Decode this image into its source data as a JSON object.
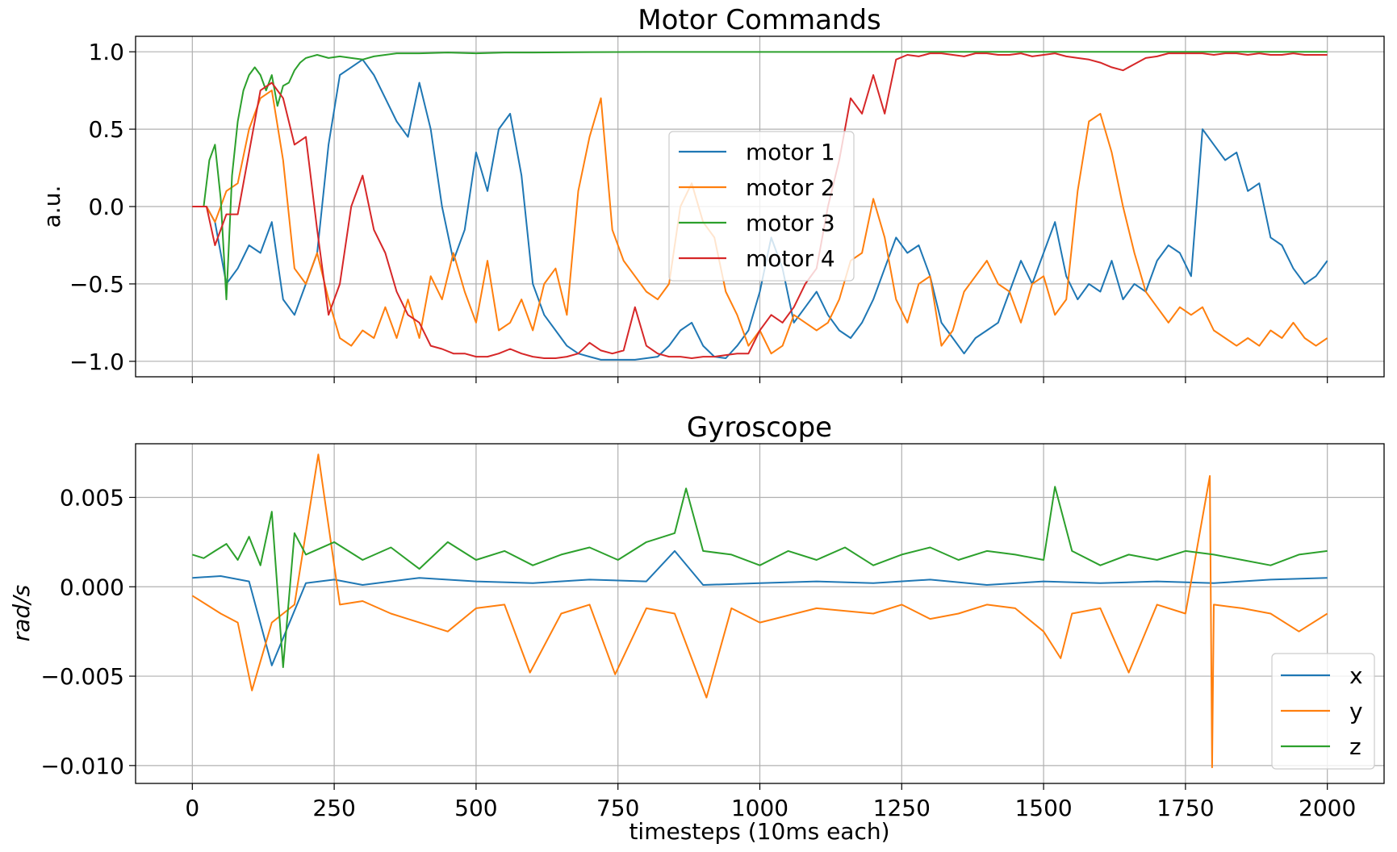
{
  "chart_data": [
    {
      "type": "line",
      "title": "Motor Commands",
      "ylabel": "a.u.",
      "xlabel": "",
      "xlim": [
        -100,
        2100
      ],
      "ylim": [
        -1.1,
        1.1
      ],
      "xticks": [
        0,
        250,
        500,
        750,
        1000,
        1250,
        1500,
        1750,
        2000
      ],
      "xtick_labels_visible": false,
      "yticks": [
        1.0,
        0.5,
        0.0,
        -0.5,
        -1.0
      ],
      "ytick_labels": [
        "1.0",
        "0.5",
        "0.0",
        "−0.5",
        "−1.0"
      ],
      "grid": true,
      "legend_position": "center",
      "series": [
        {
          "name": "motor 1",
          "color": "#1f77b4",
          "x": [
            0,
            25,
            40,
            60,
            80,
            100,
            120,
            140,
            160,
            180,
            200,
            220,
            240,
            260,
            280,
            300,
            320,
            340,
            360,
            380,
            400,
            420,
            440,
            460,
            480,
            500,
            520,
            540,
            560,
            580,
            600,
            620,
            640,
            660,
            680,
            700,
            720,
            740,
            760,
            780,
            800,
            820,
            840,
            860,
            880,
            900,
            920,
            940,
            960,
            980,
            1000,
            1020,
            1040,
            1060,
            1080,
            1100,
            1120,
            1140,
            1160,
            1180,
            1200,
            1220,
            1240,
            1260,
            1280,
            1300,
            1320,
            1340,
            1360,
            1380,
            1400,
            1420,
            1440,
            1460,
            1480,
            1500,
            1520,
            1540,
            1560,
            1580,
            1600,
            1620,
            1640,
            1660,
            1680,
            1700,
            1720,
            1740,
            1760,
            1780,
            1800,
            1820,
            1840,
            1860,
            1880,
            1900,
            1920,
            1940,
            1960,
            1980,
            2000
          ],
          "y": [
            0.0,
            0.0,
            -0.1,
            -0.5,
            -0.4,
            -0.25,
            -0.3,
            -0.1,
            -0.6,
            -0.7,
            -0.5,
            -0.3,
            0.4,
            0.85,
            0.9,
            0.95,
            0.85,
            0.7,
            0.55,
            0.45,
            0.8,
            0.5,
            0.0,
            -0.35,
            -0.15,
            0.35,
            0.1,
            0.5,
            0.6,
            0.2,
            -0.5,
            -0.7,
            -0.8,
            -0.9,
            -0.95,
            -0.97,
            -0.99,
            -0.99,
            -0.99,
            -0.99,
            -0.98,
            -0.97,
            -0.9,
            -0.8,
            -0.75,
            -0.9,
            -0.97,
            -0.98,
            -0.9,
            -0.8,
            -0.55,
            -0.2,
            -0.4,
            -0.75,
            -0.65,
            -0.55,
            -0.7,
            -0.8,
            -0.85,
            -0.75,
            -0.6,
            -0.4,
            -0.2,
            -0.3,
            -0.25,
            -0.45,
            -0.75,
            -0.85,
            -0.95,
            -0.85,
            -0.8,
            -0.75,
            -0.55,
            -0.35,
            -0.5,
            -0.3,
            -0.1,
            -0.45,
            -0.6,
            -0.5,
            -0.55,
            -0.35,
            -0.6,
            -0.5,
            -0.55,
            -0.35,
            -0.25,
            -0.3,
            -0.45,
            0.5,
            0.4,
            0.3,
            0.35,
            0.1,
            0.15,
            -0.2,
            -0.25,
            -0.4,
            -0.5,
            -0.45,
            -0.35
          ]
        },
        {
          "name": "motor 2",
          "color": "#ff7f0e",
          "x": [
            0,
            25,
            40,
            60,
            80,
            100,
            120,
            140,
            160,
            180,
            200,
            220,
            240,
            260,
            280,
            300,
            320,
            340,
            360,
            380,
            400,
            420,
            440,
            460,
            480,
            500,
            520,
            540,
            560,
            580,
            600,
            620,
            640,
            660,
            680,
            700,
            720,
            740,
            760,
            780,
            800,
            820,
            840,
            860,
            880,
            900,
            920,
            940,
            960,
            980,
            1000,
            1020,
            1040,
            1060,
            1080,
            1100,
            1120,
            1140,
            1160,
            1180,
            1200,
            1220,
            1240,
            1260,
            1280,
            1300,
            1320,
            1340,
            1360,
            1380,
            1400,
            1420,
            1440,
            1460,
            1480,
            1500,
            1520,
            1540,
            1560,
            1580,
            1600,
            1620,
            1640,
            1660,
            1680,
            1700,
            1720,
            1740,
            1760,
            1780,
            1800,
            1820,
            1840,
            1860,
            1880,
            1900,
            1920,
            1940,
            1960,
            1980,
            2000
          ],
          "y": [
            0.0,
            0.0,
            -0.1,
            0.1,
            0.15,
            0.5,
            0.7,
            0.75,
            0.3,
            -0.4,
            -0.5,
            -0.3,
            -0.6,
            -0.85,
            -0.9,
            -0.8,
            -0.85,
            -0.65,
            -0.85,
            -0.6,
            -0.85,
            -0.45,
            -0.6,
            -0.3,
            -0.55,
            -0.75,
            -0.35,
            -0.8,
            -0.75,
            -0.6,
            -0.8,
            -0.5,
            -0.4,
            -0.7,
            0.1,
            0.45,
            0.7,
            -0.15,
            -0.35,
            -0.45,
            -0.55,
            -0.6,
            -0.5,
            0.0,
            0.15,
            -0.1,
            -0.2,
            -0.55,
            -0.7,
            -0.9,
            -0.8,
            -0.95,
            -0.9,
            -0.7,
            -0.75,
            -0.8,
            -0.75,
            -0.6,
            -0.35,
            -0.3,
            0.05,
            -0.2,
            -0.6,
            -0.75,
            -0.5,
            -0.45,
            -0.9,
            -0.8,
            -0.55,
            -0.45,
            -0.35,
            -0.5,
            -0.55,
            -0.75,
            -0.5,
            -0.45,
            -0.7,
            -0.6,
            0.1,
            0.55,
            0.6,
            0.35,
            0.0,
            -0.3,
            -0.55,
            -0.65,
            -0.75,
            -0.65,
            -0.7,
            -0.65,
            -0.8,
            -0.85,
            -0.9,
            -0.85,
            -0.9,
            -0.8,
            -0.85,
            -0.75,
            -0.85,
            -0.9,
            -0.85
          ]
        },
        {
          "name": "motor 3",
          "color": "#2ca02c",
          "x": [
            0,
            20,
            30,
            40,
            50,
            60,
            70,
            80,
            90,
            100,
            110,
            120,
            130,
            140,
            150,
            160,
            170,
            180,
            190,
            200,
            210,
            220,
            240,
            260,
            280,
            300,
            320,
            340,
            360,
            400,
            450,
            500,
            550,
            600,
            700,
            800,
            1000,
            1250,
            1500,
            1750,
            2000
          ],
          "y": [
            0.0,
            0.0,
            0.3,
            0.4,
            0.05,
            -0.6,
            0.2,
            0.55,
            0.75,
            0.85,
            0.9,
            0.85,
            0.75,
            0.85,
            0.65,
            0.78,
            0.8,
            0.88,
            0.93,
            0.96,
            0.97,
            0.98,
            0.96,
            0.97,
            0.96,
            0.95,
            0.97,
            0.98,
            0.99,
            0.99,
            0.995,
            0.99,
            0.995,
            0.995,
            0.998,
            0.999,
            0.999,
            1.0,
            1.0,
            1.0,
            1.0
          ]
        },
        {
          "name": "motor 4",
          "color": "#d62728",
          "x": [
            0,
            25,
            40,
            60,
            80,
            100,
            120,
            140,
            160,
            180,
            200,
            220,
            240,
            260,
            280,
            300,
            320,
            340,
            360,
            380,
            400,
            420,
            440,
            460,
            480,
            500,
            520,
            540,
            560,
            580,
            600,
            620,
            640,
            660,
            680,
            700,
            720,
            740,
            760,
            780,
            800,
            820,
            840,
            860,
            880,
            900,
            920,
            940,
            960,
            980,
            1000,
            1020,
            1040,
            1060,
            1080,
            1100,
            1120,
            1140,
            1160,
            1180,
            1200,
            1220,
            1240,
            1260,
            1280,
            1300,
            1320,
            1340,
            1360,
            1380,
            1400,
            1420,
            1440,
            1460,
            1480,
            1500,
            1520,
            1540,
            1560,
            1580,
            1600,
            1620,
            1640,
            1660,
            1680,
            1700,
            1720,
            1740,
            1760,
            1780,
            1800,
            1820,
            1840,
            1860,
            1880,
            1900,
            1920,
            1940,
            1960,
            1980,
            2000
          ],
          "y": [
            0.0,
            0.0,
            -0.25,
            -0.05,
            -0.05,
            0.35,
            0.75,
            0.8,
            0.7,
            0.4,
            0.45,
            -0.15,
            -0.7,
            -0.5,
            0.0,
            0.2,
            -0.15,
            -0.3,
            -0.55,
            -0.7,
            -0.75,
            -0.9,
            -0.92,
            -0.95,
            -0.95,
            -0.97,
            -0.97,
            -0.95,
            -0.92,
            -0.95,
            -0.97,
            -0.98,
            -0.98,
            -0.97,
            -0.95,
            -0.88,
            -0.93,
            -0.95,
            -0.93,
            -0.65,
            -0.9,
            -0.95,
            -0.97,
            -0.97,
            -0.98,
            -0.97,
            -0.97,
            -0.96,
            -0.95,
            -0.95,
            -0.8,
            -0.7,
            -0.75,
            -0.65,
            -0.5,
            -0.4,
            0.0,
            0.3,
            0.7,
            0.6,
            0.85,
            0.6,
            0.95,
            0.98,
            0.97,
            0.99,
            0.99,
            0.98,
            0.97,
            0.99,
            0.99,
            0.98,
            0.98,
            0.99,
            0.97,
            0.98,
            0.99,
            0.97,
            0.96,
            0.95,
            0.93,
            0.9,
            0.88,
            0.92,
            0.96,
            0.97,
            0.99,
            0.99,
            0.99,
            0.99,
            0.98,
            0.99,
            0.99,
            0.98,
            0.99,
            0.98,
            0.98,
            0.99,
            0.98,
            0.98,
            0.98
          ]
        }
      ]
    },
    {
      "type": "line",
      "title": "Gyroscope",
      "ylabel": "rad/s",
      "xlabel": "timesteps (10ms each)",
      "xlim": [
        -100,
        2100
      ],
      "ylim": [
        -0.011,
        0.008
      ],
      "xticks": [
        0,
        250,
        500,
        750,
        1000,
        1250,
        1500,
        1750,
        2000
      ],
      "xtick_labels": [
        "0",
        "250",
        "500",
        "750",
        "1000",
        "1250",
        "1500",
        "1750",
        "2000"
      ],
      "yticks": [
        0.005,
        0.0,
        -0.005,
        -0.01
      ],
      "ytick_labels": [
        "0.005",
        "0.000",
        "−0.005",
        "−0.010"
      ],
      "grid": true,
      "legend_position": "lower right",
      "series": [
        {
          "name": "x",
          "color": "#1f77b4",
          "x": [
            0,
            50,
            100,
            140,
            200,
            250,
            300,
            400,
            500,
            600,
            700,
            800,
            850,
            900,
            1000,
            1100,
            1200,
            1300,
            1400,
            1500,
            1600,
            1700,
            1800,
            1900,
            2000
          ],
          "y": [
            0.0005,
            0.0006,
            0.0003,
            -0.0044,
            0.0002,
            0.0004,
            0.0001,
            0.0005,
            0.0003,
            0.0002,
            0.0004,
            0.0003,
            0.002,
            0.0001,
            0.0002,
            0.0003,
            0.0002,
            0.0004,
            0.0001,
            0.0003,
            0.0002,
            0.0003,
            0.0002,
            0.0004,
            0.0005
          ]
        },
        {
          "name": "y",
          "color": "#ff7f0e",
          "x": [
            0,
            50,
            80,
            105,
            140,
            180,
            222,
            260,
            300,
            350,
            400,
            450,
            500,
            550,
            595,
            650,
            700,
            745,
            800,
            850,
            906,
            950,
            1000,
            1100,
            1200,
            1250,
            1300,
            1350,
            1400,
            1450,
            1500,
            1530,
            1550,
            1600,
            1650,
            1700,
            1750,
            1793,
            1797,
            1800,
            1850,
            1900,
            1950,
            2000
          ],
          "y": [
            -0.0005,
            -0.0015,
            -0.002,
            -0.0058,
            -0.002,
            -0.001,
            0.0074,
            -0.001,
            -0.0008,
            -0.0015,
            -0.002,
            -0.0025,
            -0.0012,
            -0.001,
            -0.0048,
            -0.0015,
            -0.001,
            -0.0049,
            -0.0012,
            -0.0015,
            -0.0062,
            -0.0012,
            -0.002,
            -0.0012,
            -0.0015,
            -0.001,
            -0.0018,
            -0.0015,
            -0.001,
            -0.0012,
            -0.0025,
            -0.004,
            -0.0015,
            -0.0012,
            -0.0048,
            -0.001,
            -0.0015,
            0.0062,
            -0.0101,
            -0.001,
            -0.0012,
            -0.0015,
            -0.0025,
            -0.0015
          ]
        },
        {
          "name": "z",
          "color": "#2ca02c",
          "x": [
            0,
            20,
            40,
            60,
            80,
            100,
            120,
            140,
            160,
            180,
            200,
            250,
            300,
            350,
            400,
            450,
            500,
            550,
            600,
            650,
            700,
            750,
            800,
            850,
            870,
            900,
            950,
            1000,
            1050,
            1100,
            1150,
            1200,
            1250,
            1300,
            1350,
            1400,
            1450,
            1500,
            1520,
            1550,
            1600,
            1650,
            1700,
            1750,
            1800,
            1850,
            1900,
            1950,
            2000
          ],
          "y": [
            0.0018,
            0.0016,
            0.002,
            0.0024,
            0.0015,
            0.0028,
            0.0012,
            0.0042,
            -0.0045,
            0.003,
            0.0018,
            0.0025,
            0.0015,
            0.0022,
            0.001,
            0.0025,
            0.0015,
            0.002,
            0.0012,
            0.0018,
            0.0022,
            0.0015,
            0.0025,
            0.003,
            0.0055,
            0.002,
            0.0018,
            0.0012,
            0.002,
            0.0015,
            0.0022,
            0.0012,
            0.0018,
            0.0022,
            0.0015,
            0.002,
            0.0018,
            0.0015,
            0.0056,
            0.002,
            0.0012,
            0.0018,
            0.0015,
            0.002,
            0.0018,
            0.0015,
            0.0012,
            0.0018,
            0.002
          ]
        }
      ]
    }
  ]
}
